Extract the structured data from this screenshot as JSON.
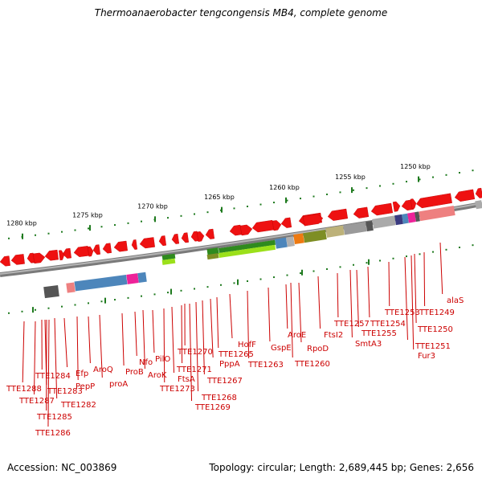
{
  "title": "Thermoanaerobacter tengcongensis MB4, complete genome",
  "footer": {
    "accession": "Accession: NC_003869",
    "summary": "Topology: circular; Length: 2,689,445 bp; Genes: 2,656"
  },
  "scale_labels": [
    "1280 kbp",
    "1275 kbp",
    "1270 kbp",
    "1265 kbp",
    "1260 kbp",
    "1255 kbp",
    "1250 kbp"
  ],
  "gene_labels": [
    "TTE1288",
    "TTE1287",
    "TTE1284",
    "TTE1283",
    "TTE1285",
    "TTE1286",
    "Efp",
    "PepP",
    "TTE1282",
    "AroQ",
    "proA",
    "ProB",
    "Nfo",
    "AroK",
    "PilO",
    "TTE1273",
    "FtsA",
    "TTE1271",
    "TTE1270",
    "TTE1269",
    "TTE1268",
    "TTE1267",
    "PppA",
    "TTE1265",
    "HofF",
    "TTE1263",
    "GspE",
    "AroE",
    "RpoD",
    "TTE1260",
    "FtsI2",
    "TTE1257",
    "SmtA3",
    "TTE1255",
    "TTE1254",
    "TTE1253",
    "TTE1251",
    "Fur3",
    "TTE1250",
    "TTE1249",
    "alaS"
  ],
  "colors": {
    "genome_arc": "#7a7a7a",
    "forward_genes": "#ee1111",
    "label": "#cc0000",
    "tick": "#1e7a1e",
    "cog_blue": "#4d86bb",
    "cog_magenta": "#ee2299",
    "cog_green": "#2f8a1e",
    "cog_lime": "#9be01a",
    "cog_olive": "#7e8e24",
    "cog_orange": "#ee7a11",
    "cog_grey": "#9a9a9a",
    "cog_navy": "#3a3a80",
    "cog_salmon": "#ee8080"
  }
}
